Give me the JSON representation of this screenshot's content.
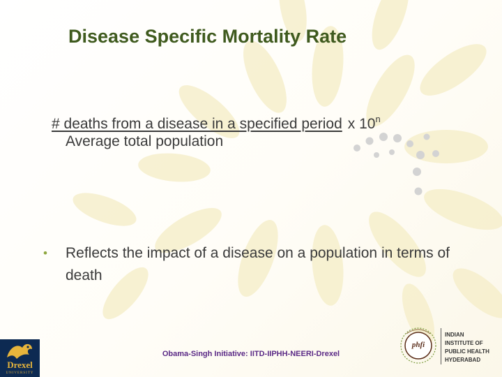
{
  "slide": {
    "title": "Disease Specific Mortality Rate",
    "formula": {
      "numerator": "# deaths from a disease in a specified period",
      "multiplier": "x 10",
      "exponent": "n",
      "denominator": "Average total population"
    },
    "bullet": {
      "marker": "•",
      "text": "Reflects the impact of a disease on a population in terms of death"
    },
    "footer": "Obama-Singh Initiative: IITD-IIPHH-NEERI-Drexel",
    "logos": {
      "drexel_text": "Drexel",
      "drexel_subtext": "UNIVERSITY",
      "phfi_text": "phfi",
      "iiph_text": "INDIAN\nINSTITUTE OF\nPUBLIC HEALTH\nHYDERABAD"
    }
  },
  "colors": {
    "title": "#3f5a1e",
    "body_text": "#3a3a3a",
    "bullet": "#8ea63e",
    "footer": "#5b2a86",
    "petal": "#f6efcc",
    "dot": "#d3d3d3"
  }
}
